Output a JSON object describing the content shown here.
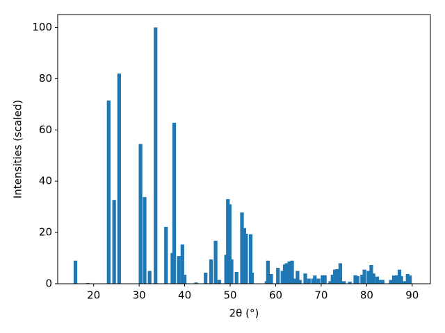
{
  "chart_data": {
    "type": "bar",
    "xlabel": "2θ (°)",
    "ylabel": "Intensities (scaled)",
    "color": "#1f77b4",
    "x": [
      16,
      18.7,
      23.3,
      24.5,
      25.6,
      30.3,
      31.2,
      32.3,
      33.6,
      35.9,
      37.3,
      37.7,
      38.7,
      39.5,
      40.0,
      42.5,
      44.6,
      45.8,
      46.8,
      47.6,
      49.1,
      49.5,
      49.9,
      50.3,
      51.4,
      52.6,
      53.1,
      53.5,
      54.5,
      54.8,
      58,
      58.3,
      59,
      60.5,
      61.5,
      62,
      62.4,
      63,
      63.6,
      64.2,
      64.8,
      65.3,
      66.5,
      67.3,
      68.2,
      68.6,
      69.4,
      70.3,
      70.8,
      72,
      72.5,
      73,
      73.5,
      74.2,
      75,
      76.3,
      77.5,
      78,
      79,
      79.5,
      80.4,
      81,
      81.5,
      82.3,
      82.8,
      83.5,
      85.3,
      86,
      86.6,
      87.2,
      87.6,
      88.3,
      89,
      89.5
    ],
    "values": [
      9,
      0.3,
      71.5,
      32.7,
      82,
      54.5,
      33.8,
      5,
      100,
      22.2,
      12,
      62.8,
      10.8,
      15.3,
      3.5,
      0.5,
      4.3,
      9.5,
      16.8,
      1.5,
      11.3,
      33,
      31,
      9.5,
      4.6,
      27.8,
      21.7,
      19.5,
      19.3,
      4.3,
      1,
      9,
      3.8,
      6.2,
      5,
      7.5,
      8,
      8.7,
      9,
      2,
      5,
      1.5,
      4,
      2,
      2,
      3.2,
      2,
      3.3,
      3.3,
      1,
      3.5,
      5.5,
      5.7,
      8,
      1,
      0.8,
      3.3,
      3,
      3.5,
      5.5,
      5,
      7.3,
      4,
      2.8,
      1.5,
      1.5,
      1.5,
      3.2,
      3.3,
      5.5,
      3,
      1,
      3.8,
      3.2
    ],
    "xlim": [
      12.1,
      94.0
    ],
    "xticks": [
      20,
      30,
      40,
      50,
      60,
      70,
      80,
      90
    ],
    "ylim": [
      0,
      105
    ],
    "yticks": [
      0,
      20,
      40,
      60,
      80,
      100
    ]
  }
}
